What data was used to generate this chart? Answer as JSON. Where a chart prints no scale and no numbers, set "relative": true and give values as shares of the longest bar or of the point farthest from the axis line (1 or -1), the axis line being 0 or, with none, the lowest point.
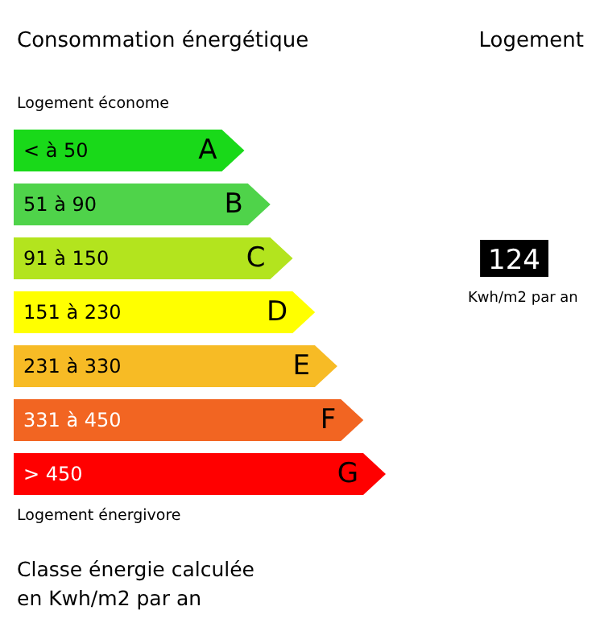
{
  "chart_data": {
    "type": "bar",
    "orientation": "horizontal",
    "relative": true,
    "title": "Consommation énergétique",
    "categories": [
      "A",
      "B",
      "C",
      "D",
      "E",
      "F",
      "G"
    ],
    "values": [
      0.62,
      0.69,
      0.75,
      0.81,
      0.87,
      0.94,
      1
    ],
    "colors": [
      "#19d919",
      "#4fd34a",
      "#b3e41e",
      "#ffff00",
      "#f7bb25",
      "#f26522",
      "#ff0000"
    ],
    "annotations": [
      "Logement",
      "Logement économe",
      "Logement énergivore",
      "Classe énergie calculée\nen Kwh/m2 par an",
      "< à 50",
      "51 à 90",
      "91 à 150",
      "151 à 230",
      "231 à 330",
      "331 à 450",
      "> 450",
      "124",
      "Kwh/m2 par an"
    ]
  }
}
